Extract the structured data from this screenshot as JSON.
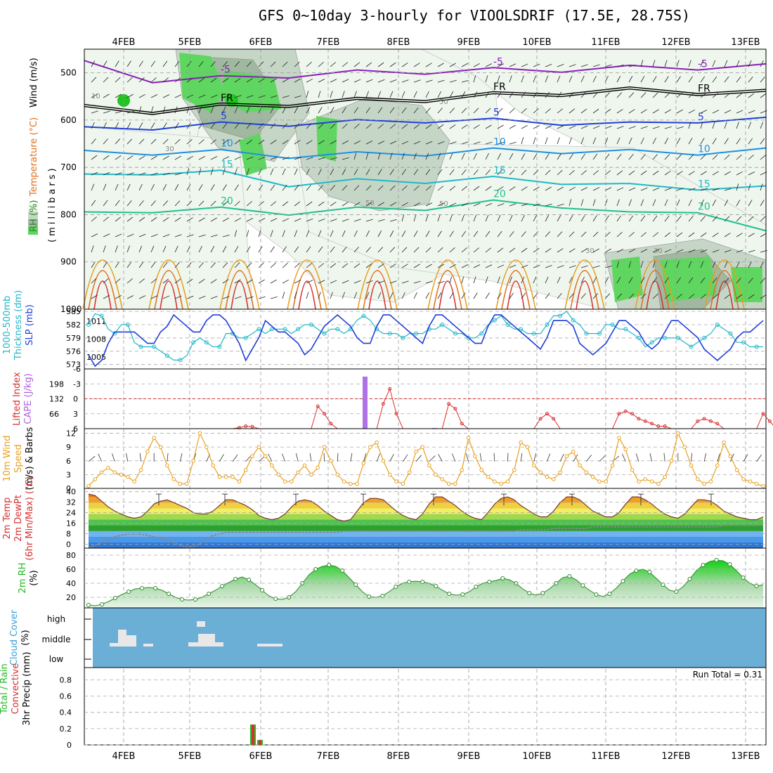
{
  "title": "GFS 0~10day 3-hourly for VIOOLSDRIF (17.5E, 28.75S)",
  "chart_data": [
    {
      "panel": "upper-air",
      "type": "heatmap",
      "x": [
        "4FEB",
        "5FEB",
        "6FEB",
        "7FEB",
        "8FEB",
        "9FEB",
        "10FEB",
        "11FEB",
        "12FEB",
        "13FEB"
      ],
      "ylabel_parts": [
        {
          "text": "RH (%)",
          "color": "#228b22"
        },
        {
          "text": "Temperature (°C)",
          "color": "#e07020"
        },
        {
          "text": "Wind (m/s)",
          "color": "#000000"
        }
      ],
      "ylabel2": "(millibars)",
      "yticks": [
        500,
        600,
        700,
        800,
        900,
        1000
      ],
      "ylim": [
        1000,
        450
      ],
      "rh_labels": [
        "10",
        "30",
        "50",
        "50",
        "50",
        "30",
        "30"
      ],
      "rh_contours": [
        30,
        50,
        70,
        90
      ],
      "rh_colors": [
        "#eef6ee",
        "#c6d6c6",
        "#a0b8a0",
        "#5fd65f",
        "#22c422"
      ],
      "isotherms": [
        {
          "label": "-5",
          "color": "#8a1fb8",
          "pressure": [
            480,
            515,
            512,
            505,
            500,
            497,
            495,
            493,
            490,
            488,
            487
          ]
        },
        {
          "label": "FR",
          "color": "#000000",
          "pressure": [
            575,
            580,
            572,
            565,
            560,
            555,
            548,
            542,
            538,
            540,
            543
          ]
        },
        {
          "label": "5",
          "color": "#1f3fd8",
          "pressure": [
            620,
            615,
            610,
            607,
            605,
            600,
            602,
            605,
            610,
            600,
            600
          ]
        },
        {
          "label": "10",
          "color": "#1f8fe0",
          "pressure": [
            670,
            668,
            668,
            675,
            673,
            670,
            665,
            665,
            668,
            668,
            665
          ]
        },
        {
          "label": "15",
          "color": "#1fb8c8",
          "pressure": [
            720,
            710,
            712,
            735,
            730,
            728,
            725,
            730,
            740,
            742,
            745
          ]
        },
        {
          "label": "20",
          "color": "#20c090",
          "pressure": [
            800,
            790,
            790,
            795,
            790,
            785,
            775,
            780,
            800,
            790,
            840
          ]
        }
      ],
      "lower_contour_colors": [
        "#e8a020",
        "#e07020",
        "#d83030"
      ]
    },
    {
      "panel": "thickness-slp",
      "type": "line",
      "ylabel_parts": [
        {
          "text": "1000-500mb",
          "color": "#1fb8c8"
        },
        {
          "text": "Thickness (dm)",
          "color": "#1fb8c8"
        },
        {
          "text": "SLP (mb)",
          "color": "#1f3fd8"
        }
      ],
      "yticks_left": [
        573,
        576,
        579,
        582,
        585
      ],
      "yticks_right": [
        1005,
        1008,
        1011
      ],
      "series": [
        {
          "name": "1000-500mb Thickness (dm)",
          "color": "#1fb8c8",
          "axis": "left",
          "values": [
            582,
            584.5,
            584,
            581,
            580,
            582,
            582,
            578,
            577,
            577,
            577,
            576,
            575,
            574,
            574,
            575,
            578,
            579,
            578,
            577,
            577,
            580,
            580,
            579,
            579,
            580,
            581,
            580,
            581,
            581,
            581,
            580,
            581,
            582,
            582,
            581,
            580,
            581,
            581,
            580,
            581,
            583,
            584,
            583,
            581,
            580,
            580,
            580,
            579,
            580,
            580,
            580,
            581,
            581,
            582,
            581,
            580,
            580,
            579,
            579,
            580,
            582,
            583,
            584,
            582,
            581,
            581,
            580,
            580,
            580,
            582,
            584,
            584,
            585,
            583,
            582,
            580,
            580,
            580,
            582,
            582,
            581,
            581,
            580,
            579,
            577,
            578,
            579,
            579,
            579,
            579,
            578,
            577,
            578,
            579,
            580,
            582,
            581,
            580,
            578,
            578,
            577,
            577,
            577
          ]
        },
        {
          "name": "SLP (mb)",
          "color": "#1f3fd8",
          "axis": "right",
          "values": [
            1005,
            1003,
            1004,
            1007,
            1009,
            1009,
            1009,
            1009,
            1008,
            1007,
            1007,
            1009,
            1010,
            1012,
            1011,
            1010,
            1009,
            1009,
            1011,
            1012,
            1012,
            1011,
            1009,
            1007,
            1004,
            1006,
            1008,
            1011,
            1010,
            1009,
            1009,
            1008,
            1007,
            1005,
            1006,
            1008,
            1010,
            1011,
            1012,
            1011,
            1010,
            1008,
            1007,
            1007,
            1010,
            1012,
            1012,
            1011,
            1010,
            1009,
            1008,
            1007,
            1010,
            1012,
            1012,
            1011,
            1010,
            1009,
            1008,
            1007,
            1007,
            1010,
            1012,
            1012,
            1011,
            1010,
            1009,
            1008,
            1007,
            1006,
            1008,
            1011,
            1011,
            1011,
            1010,
            1007,
            1006,
            1005,
            1006,
            1007,
            1009,
            1011,
            1011,
            1010,
            1009,
            1007,
            1006,
            1007,
            1009,
            1011,
            1011,
            1010,
            1009,
            1008,
            1006,
            1005,
            1004,
            1005,
            1006,
            1008,
            1009,
            1009,
            1010,
            1011
          ]
        }
      ]
    },
    {
      "panel": "lifted-cape",
      "type": "bar",
      "ylabel_parts": [
        {
          "text": "Lifted Index",
          "color": "#d83030"
        },
        {
          "text": "CAPE (J/kg)",
          "color": "#b060e0"
        }
      ],
      "yticks_left": [
        "-6",
        "-3",
        "0",
        "3",
        "6"
      ],
      "yticks_right": [
        "66",
        "132",
        "198"
      ],
      "ylim_left": [
        -6,
        6
      ],
      "cape_bars": [
        {
          "x": "7FEB+12h",
          "value": 230
        },
        {
          "x": "8FEB+12h",
          "value": 3
        }
      ],
      "lifted_index": [
        6,
        6,
        6,
        6,
        6,
        6,
        6,
        6,
        6,
        6,
        6,
        6,
        6,
        6,
        6,
        6,
        6,
        6,
        6,
        6,
        6,
        6,
        6,
        5.8,
        5.5,
        5.6,
        6,
        6,
        6,
        6,
        6,
        6,
        6,
        6,
        6,
        1.5,
        3,
        5,
        6,
        6,
        6,
        6,
        6,
        6,
        6,
        1,
        -2,
        3,
        6,
        6,
        6,
        6,
        6,
        6,
        6,
        1,
        2,
        5,
        6,
        6,
        6,
        6,
        6,
        6,
        6,
        6,
        6,
        6,
        6,
        4,
        3,
        4,
        6,
        6,
        6,
        6,
        6,
        6,
        6,
        6,
        6,
        3,
        2.5,
        3,
        4,
        4.5,
        5,
        5.5,
        5.5,
        6,
        6,
        6,
        6,
        4.5,
        4,
        4.5,
        5,
        6,
        6,
        6,
        6,
        6,
        6,
        3,
        4.5,
        6
      ]
    },
    {
      "panel": "wind10m",
      "type": "line",
      "ylabel_parts": [
        {
          "text": "10m Wind",
          "color": "#e8a020"
        },
        {
          "text": "Speed",
          "color": "#e8a020"
        },
        {
          "text": "(m/s) & Barbs",
          "color": "#000000"
        }
      ],
      "yticks": [
        0,
        3,
        6,
        9,
        12
      ],
      "ylim": [
        0,
        13
      ],
      "series": [
        {
          "name": "10m Wind Speed",
          "color": "#e8a020",
          "values": [
            0.5,
            2,
            3.5,
            4.5,
            3.5,
            3,
            2.5,
            1.5,
            4,
            8,
            11,
            9,
            5,
            2,
            1,
            1,
            6,
            12,
            9,
            5,
            2.5,
            2.5,
            2.5,
            1.5,
            4,
            7,
            9,
            7,
            5,
            3,
            1.5,
            1.5,
            3.5,
            5,
            3,
            4.5,
            9,
            6,
            3,
            1.5,
            1,
            1,
            5.5,
            9,
            10,
            6,
            3,
            1.5,
            1,
            3.5,
            8,
            9,
            5,
            3,
            2,
            1,
            1,
            4,
            11,
            7,
            4,
            2.5,
            1.5,
            1,
            1.5,
            4,
            10,
            9,
            5,
            3.5,
            2.5,
            2,
            3.5,
            7,
            8,
            5,
            3.5,
            2.5,
            1.5,
            1.5,
            5,
            11,
            8.5,
            4,
            1.5,
            2,
            1.5,
            1,
            2.5,
            6,
            12,
            9,
            5,
            2,
            1,
            1.5,
            5,
            10,
            7,
            4,
            2,
            1.5,
            1,
            0.5
          ]
        }
      ]
    },
    {
      "panel": "temp2m",
      "type": "area",
      "ylabel_parts": [
        {
          "text": "2m Temp",
          "color": "#d83030"
        },
        {
          "text": "2m DewPt",
          "color": "#d83030"
        },
        {
          "text": "(6hr Min/Max) (°C)",
          "color": "#d83030"
        }
      ],
      "yticks": [
        0,
        8,
        16,
        24,
        32,
        40
      ],
      "ylim": [
        0,
        42
      ],
      "temperature": [
        38,
        37,
        33,
        29,
        26,
        24,
        22,
        21,
        22,
        26,
        31,
        33,
        34,
        32,
        30,
        28,
        25,
        24,
        24,
        26,
        30,
        34,
        34,
        32,
        30,
        27,
        23,
        21,
        20,
        21,
        24,
        29,
        33,
        34,
        33,
        30,
        26,
        23,
        20,
        19,
        20,
        26,
        32,
        35,
        35,
        34,
        30,
        26,
        23,
        21,
        20,
        24,
        31,
        36,
        36,
        33,
        30,
        26,
        23,
        21,
        20,
        25,
        31,
        35,
        36,
        34,
        30,
        27,
        24,
        22,
        22,
        26,
        32,
        36,
        36,
        34,
        30,
        26,
        24,
        22,
        22,
        25,
        31,
        36,
        36,
        34,
        31,
        27,
        24,
        22,
        21,
        24,
        29,
        34,
        34,
        33,
        30,
        26,
        24,
        22,
        21,
        20,
        20,
        22
      ],
      "dewpoint": [
        0,
        2,
        4,
        6,
        8,
        9,
        10,
        10,
        10,
        9,
        8,
        7,
        6,
        4,
        2,
        1,
        1,
        3,
        6,
        9,
        10,
        11,
        11,
        11,
        11,
        11,
        11,
        11,
        11,
        11,
        11,
        11,
        11,
        11,
        11,
        11,
        11,
        11,
        11,
        12,
        12,
        12,
        12,
        12,
        12,
        12,
        12,
        12,
        12,
        12,
        12,
        12,
        12,
        12,
        12,
        12,
        12,
        12,
        12,
        12,
        12,
        12,
        12,
        12,
        12,
        12,
        13,
        13,
        13,
        13,
        13,
        14,
        14,
        14,
        14,
        14,
        14,
        15,
        15,
        15,
        15,
        15,
        15,
        15,
        15,
        15,
        15,
        15,
        15,
        15,
        15,
        15,
        15,
        15,
        15,
        15,
        15,
        16,
        16,
        16,
        16,
        16,
        16,
        16
      ],
      "band_colors": [
        "#c8a0f0",
        "#2e78d8",
        "#4a98e8",
        "#6eb4f0",
        "#2ea02e",
        "#50c050",
        "#a0d850",
        "#f0f060",
        "#f0d040",
        "#f0a020",
        "#e87020",
        "#d83020",
        "#a81010"
      ]
    },
    {
      "panel": "rh2m",
      "type": "area",
      "ylabel_parts": [
        {
          "text": "2m RH",
          "color": "#22b822"
        },
        {
          "text": "(%)",
          "color": "#000000"
        }
      ],
      "yticks": [
        20,
        40,
        60,
        80
      ],
      "ylim": [
        5,
        90
      ],
      "values": [
        9,
        8,
        10,
        14,
        19,
        24,
        28,
        32,
        33,
        34,
        33,
        30,
        25,
        20,
        17,
        16,
        17,
        20,
        25,
        30,
        36,
        41,
        46,
        49,
        45,
        38,
        30,
        22,
        18,
        17,
        20,
        28,
        40,
        52,
        60,
        64,
        66,
        64,
        58,
        48,
        38,
        28,
        21,
        20,
        22,
        28,
        35,
        40,
        42,
        43,
        42,
        40,
        36,
        30,
        25,
        23,
        24,
        28,
        35,
        40,
        42,
        44,
        47,
        45,
        40,
        32,
        26,
        23,
        26,
        32,
        40,
        48,
        50,
        45,
        37,
        30,
        24,
        21,
        25,
        33,
        43,
        53,
        58,
        60,
        56,
        47,
        38,
        30,
        28,
        35,
        46,
        58,
        66,
        71,
        73,
        72,
        67,
        58,
        48,
        40,
        36,
        38
      ]
    },
    {
      "panel": "cloud-cover",
      "type": "bar",
      "ylabel_parts": [
        {
          "text": "Cloud Cover",
          "color": "#3aa0d8"
        },
        {
          "text": "(%)",
          "color": "#000000"
        }
      ],
      "levels": [
        "high",
        "middle",
        "low"
      ],
      "background_color": "#6baed6",
      "bar_color": "#e8e8e8"
    },
    {
      "panel": "precip",
      "type": "bar",
      "ylabel_parts": [
        {
          "text": "Total / Rain",
          "color": "#22b822"
        },
        {
          "text": "Convective",
          "color": "#d83030"
        },
        {
          "text": "3hr Precip (mm)",
          "color": "#000000"
        }
      ],
      "yticks": [
        "0",
        "0.2",
        "0.4",
        "0.6",
        "0.8"
      ],
      "ylim": [
        0,
        0.95
      ],
      "run_total": "Run Total = 0.31",
      "bars": [
        {
          "x": "6FEB-03h",
          "total": 0.25,
          "convective": 0.25
        },
        {
          "x": "6FEB+00h",
          "total": 0.06,
          "convective": 0.06
        }
      ]
    }
  ]
}
